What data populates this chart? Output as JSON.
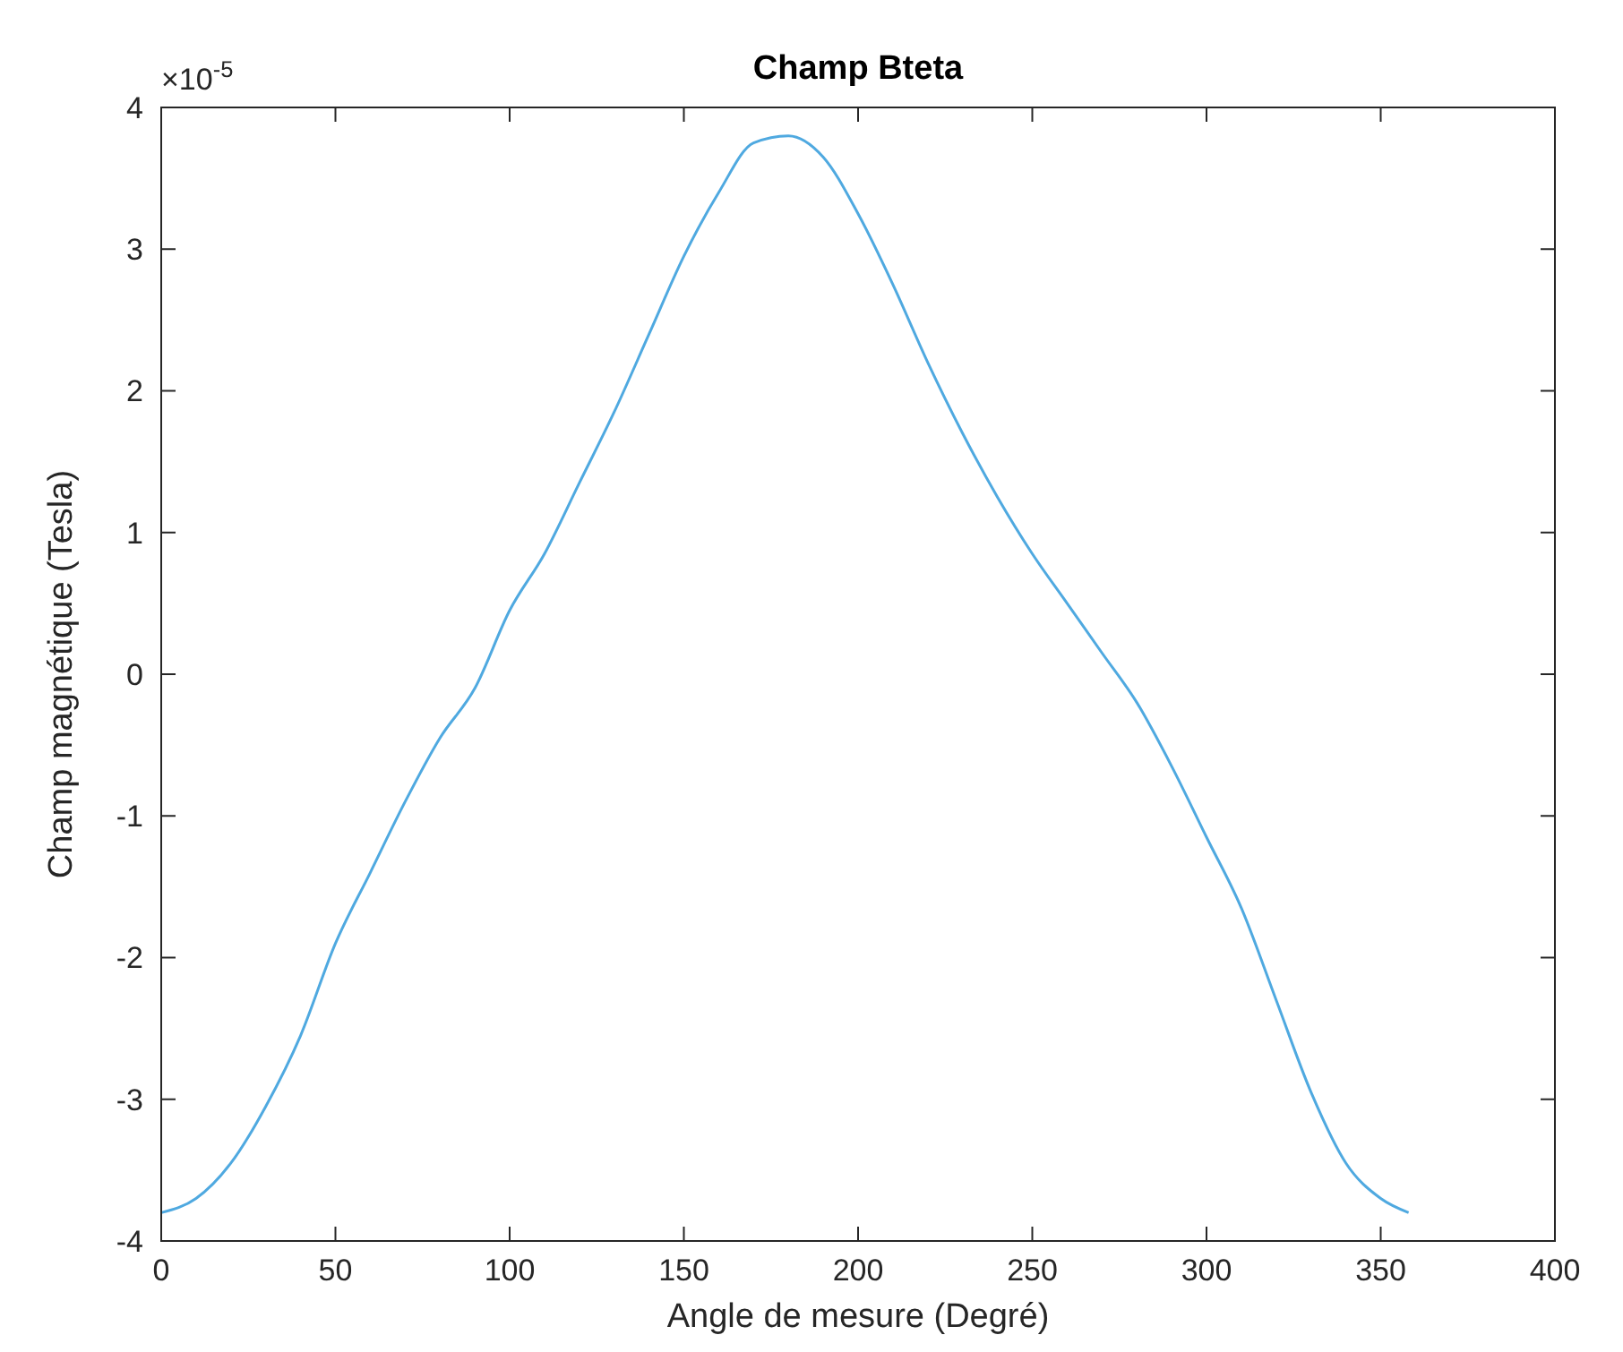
{
  "chart_data": {
    "type": "line",
    "title": "Champ Bteta",
    "xlabel": "Angle de mesure (Degré)",
    "ylabel": "Champ magnétique (Tesla)",
    "annotations": [
      "×10$^{-5}$"
    ],
    "x": [
      0,
      10,
      20,
      30,
      40,
      50,
      60,
      70,
      80,
      90,
      100,
      110,
      120,
      130,
      140,
      150,
      160,
      170,
      180,
      190,
      200,
      210,
      220,
      230,
      240,
      250,
      260,
      270,
      280,
      290,
      300,
      310,
      320,
      330,
      340,
      350,
      358
    ],
    "series": [
      {
        "color": "#4fa9e0",
        "values": [
          -3.8,
          -3.7,
          -3.45,
          -3.05,
          -2.55,
          -1.9,
          -1.4,
          -0.9,
          -0.45,
          -0.1,
          0.45,
          0.85,
          1.35,
          1.85,
          2.4,
          2.95,
          3.4,
          3.75,
          3.8,
          3.65,
          3.25,
          2.75,
          2.2,
          1.7,
          1.25,
          0.85,
          0.5,
          0.15,
          -0.2,
          -0.65,
          -1.15,
          -1.65,
          -2.3,
          -2.95,
          -3.45,
          -3.7,
          -3.8
        ]
      }
    ],
    "xlim": [
      0,
      400
    ],
    "xticks": [
      0,
      50,
      100,
      150,
      200,
      250,
      300,
      350,
      400
    ],
    "ylim": [
      -4,
      4
    ],
    "yticks": [
      -4,
      -3,
      -2,
      -1,
      0,
      1,
      2,
      3,
      4
    ],
    "grid": false,
    "marker": "none",
    "line_style": "solid"
  }
}
